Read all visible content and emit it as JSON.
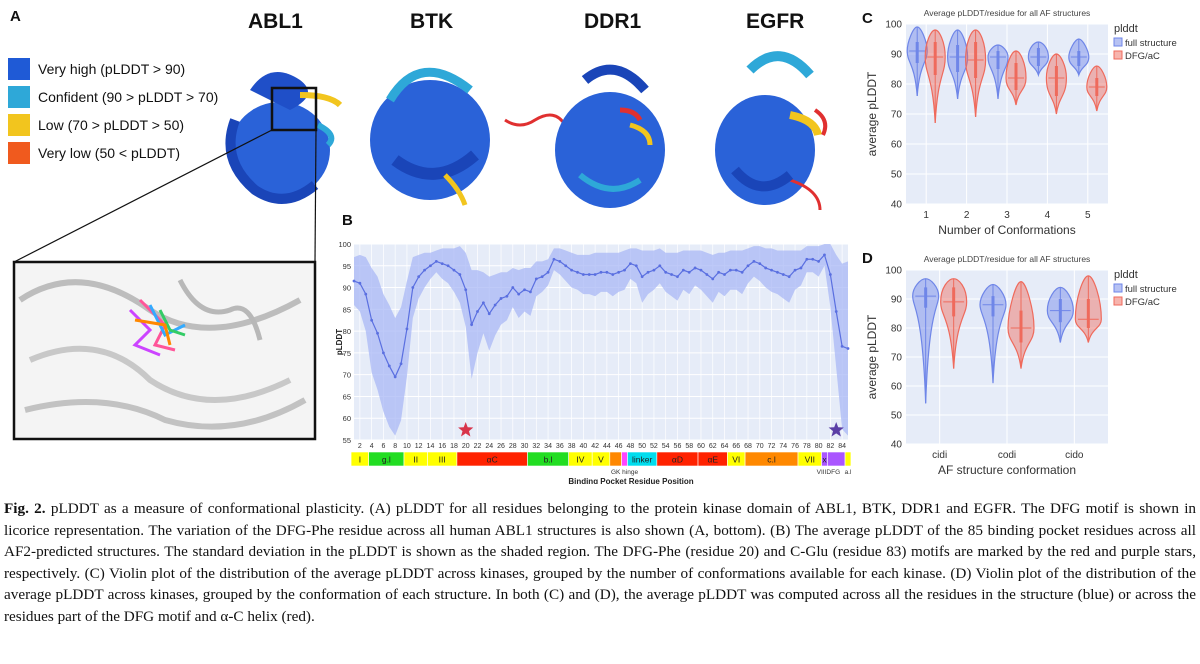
{
  "panels": {
    "a": "A",
    "b": "B",
    "c": "C",
    "d": "D"
  },
  "proteins": [
    "ABL1",
    "BTK",
    "DDR1",
    "EGFR"
  ],
  "legend": [
    {
      "label": "Very high (pLDDT > 90)",
      "color": "#1f5ad6"
    },
    {
      "label": "Confident (90 > pLDDT > 70)",
      "color": "#2ea8d8"
    },
    {
      "label": "Low (70 > pLDDT > 50)",
      "color": "#f2c51e"
    },
    {
      "label": "Very low (50 < pLDDT)",
      "color": "#f05a1e"
    }
  ],
  "caption": {
    "label": "Fig. 2.",
    "text": "pLDDT as a measure of conformational plasticity. (A) pLDDT for all residues belonging to the protein kinase domain of ABL1, BTK, DDR1 and EGFR. The DFG motif is shown in licorice representation. The variation of the DFG-Phe residue across all human ABL1 structures is also shown (A, bottom). (B) The average pLDDT of the 85 binding pocket residues across all AF2-predicted structures. The standard deviation in the pLDDT is shown as the shaded region. The DFG-Phe (residue 20) and C-Glu (residue 83) motifs are marked by the red and purple stars, respectively. (C) Violin plot of the distribution of the average pLDDT across kinases, grouped by the number of conformations available for each kinase. (D) Violin plot of the distribution of the average pLDDT across kinases, grouped by the conformation of each structure. In both (C) and (D), the average pLDDT was computed across all the residues in the structure (blue) or across the residues part of the DFG motif and α-C helix (red)."
  },
  "chart_data": [
    {
      "id": "B",
      "type": "line",
      "title": "",
      "xlabel": "Binding Pocket Residue Position",
      "ylabel": "pLDDT",
      "xlim": [
        1,
        85
      ],
      "ylim": [
        55,
        100
      ],
      "yticks": [
        55,
        60,
        65,
        70,
        75,
        80,
        85,
        90,
        95,
        100
      ],
      "xticks": [
        2,
        4,
        6,
        8,
        10,
        12,
        14,
        16,
        18,
        20,
        22,
        24,
        26,
        28,
        30,
        32,
        34,
        36,
        38,
        40,
        42,
        44,
        46,
        48,
        50,
        52,
        54,
        56,
        58,
        60,
        62,
        64,
        66,
        68,
        70,
        72,
        74,
        76,
        78,
        80,
        82,
        84
      ],
      "x": [
        1,
        2,
        3,
        4,
        5,
        6,
        7,
        8,
        9,
        10,
        11,
        12,
        13,
        14,
        15,
        16,
        17,
        18,
        19,
        20,
        21,
        22,
        23,
        24,
        25,
        26,
        27,
        28,
        29,
        30,
        31,
        32,
        33,
        34,
        35,
        36,
        37,
        38,
        39,
        40,
        41,
        42,
        43,
        44,
        45,
        46,
        47,
        48,
        49,
        50,
        51,
        52,
        53,
        54,
        55,
        56,
        57,
        58,
        59,
        60,
        61,
        62,
        63,
        64,
        65,
        66,
        67,
        68,
        69,
        70,
        71,
        72,
        73,
        74,
        75,
        76,
        77,
        78,
        79,
        80,
        81,
        82,
        83,
        84,
        85
      ],
      "mean": [
        91.5,
        91.0,
        88.5,
        82.5,
        79.5,
        75.0,
        72.0,
        69.5,
        72.5,
        80.5,
        90.0,
        92.5,
        94.0,
        95.0,
        96.0,
        95.5,
        95.0,
        94.0,
        93.0,
        89.5,
        81.5,
        84.5,
        86.5,
        84.0,
        86.0,
        87.5,
        88.0,
        90.0,
        88.5,
        89.5,
        89.0,
        92.0,
        92.5,
        93.5,
        96.5,
        96.0,
        95.0,
        94.0,
        93.5,
        93.0,
        93.0,
        93.0,
        93.5,
        93.5,
        93.0,
        93.5,
        94.0,
        95.5,
        95.0,
        92.5,
        93.5,
        94.0,
        95.0,
        93.5,
        93.0,
        92.5,
        94.0,
        93.5,
        94.5,
        94.0,
        93.0,
        92.0,
        93.5,
        93.0,
        94.0,
        94.0,
        93.5,
        95.0,
        96.0,
        95.5,
        94.5,
        94.0,
        93.5,
        93.0,
        92.5,
        94.0,
        94.5,
        96.5,
        96.5,
        96.0,
        97.5,
        93.0,
        84.5,
        76.5,
        76.0
      ],
      "std": [
        5.5,
        6.5,
        8.5,
        12.0,
        13.0,
        13.5,
        14.0,
        13.5,
        13.0,
        11.0,
        7.0,
        5.0,
        4.0,
        3.0,
        2.5,
        3.5,
        4.0,
        5.0,
        6.5,
        8.5,
        12.5,
        9.5,
        7.0,
        8.5,
        7.0,
        6.0,
        5.5,
        4.5,
        5.5,
        5.0,
        5.5,
        4.0,
        3.5,
        3.0,
        2.5,
        3.0,
        3.5,
        4.0,
        4.0,
        4.5,
        4.5,
        5.0,
        4.5,
        4.5,
        5.0,
        4.5,
        4.5,
        3.5,
        4.0,
        6.0,
        5.0,
        4.5,
        4.0,
        4.5,
        5.0,
        5.5,
        4.5,
        5.0,
        4.0,
        4.5,
        5.0,
        5.5,
        4.5,
        5.0,
        4.5,
        4.5,
        5.0,
        4.0,
        3.5,
        4.0,
        4.5,
        5.0,
        5.0,
        5.5,
        6.0,
        4.5,
        4.0,
        3.0,
        3.0,
        3.5,
        2.5,
        7.5,
        13.0,
        19.0,
        20.0
      ],
      "stars": [
        {
          "x": 20,
          "color": "#d8344a",
          "label": "DFG-Phe"
        },
        {
          "x": 83,
          "color": "#5b3fa6",
          "label": "C-Glu"
        }
      ],
      "regions": [
        {
          "label": "I",
          "start": 1,
          "end": 3,
          "color": "#ffff00"
        },
        {
          "label": "g.l",
          "start": 4,
          "end": 9,
          "color": "#22dd22"
        },
        {
          "label": "II",
          "start": 10,
          "end": 13,
          "color": "#ffff00"
        },
        {
          "label": "III",
          "start": 14,
          "end": 18,
          "color": "#ffff00"
        },
        {
          "label": "αC",
          "start": 19,
          "end": 30,
          "color": "#ff2200"
        },
        {
          "label": "b.l",
          "start": 31,
          "end": 37,
          "color": "#22dd22"
        },
        {
          "label": "IV",
          "start": 38,
          "end": 41,
          "color": "#ffff00"
        },
        {
          "label": "V",
          "start": 42,
          "end": 44,
          "color": "#ffff00"
        },
        {
          "label": "",
          "start": 45,
          "end": 46,
          "color": "#ff8800"
        },
        {
          "label": "",
          "start": 47,
          "end": 47,
          "color": "#ff44ff"
        },
        {
          "label": "linker",
          "start": 48,
          "end": 52,
          "color": "#00ddee"
        },
        {
          "label": "αD",
          "start": 53,
          "end": 59,
          "color": "#ff2200"
        },
        {
          "label": "αE",
          "start": 60,
          "end": 64,
          "color": "#ff2200"
        },
        {
          "label": "VI",
          "start": 65,
          "end": 67,
          "color": "#ffff00"
        },
        {
          "label": "c.l",
          "start": 68,
          "end": 76,
          "color": "#ff8800"
        },
        {
          "label": "VII",
          "start": 77,
          "end": 80,
          "color": "#ffff00"
        },
        {
          "label": "x",
          "start": 81,
          "end": 81,
          "color": "#aa55ff"
        },
        {
          "label": "",
          "start": 82,
          "end": 84,
          "color": "#aa55ff"
        },
        {
          "label": "",
          "start": 85,
          "end": 85,
          "color": "#ffff00"
        }
      ],
      "sublabels": [
        {
          "label": "GK hinge",
          "x": 47
        },
        {
          "label": "VIII",
          "x": 80.5
        },
        {
          "label": "DFG",
          "x": 82.5
        },
        {
          "label": "a.l",
          "x": 85
        }
      ]
    },
    {
      "id": "C",
      "type": "violin",
      "title": "Average pLDDT/residue for all AF structures",
      "xlabel": "Number of Conformations",
      "ylabel": "average pLDDT",
      "categories": [
        "1",
        "2",
        "3",
        "4",
        "5"
      ],
      "ylim": [
        40,
        100
      ],
      "yticks": [
        40,
        50,
        60,
        70,
        80,
        90,
        100
      ],
      "legend_title": "plddt",
      "series": [
        {
          "name": "full structure",
          "color": "#6f86e8",
          "min": [
            76,
            75,
            75,
            83,
            83
          ],
          "q1": [
            87,
            84,
            85,
            86,
            86
          ],
          "median": [
            91,
            89,
            89,
            89,
            89
          ],
          "q3": [
            94,
            93,
            91,
            92,
            91
          ],
          "max": [
            99,
            98,
            93,
            94,
            95
          ]
        },
        {
          "name": "DFG/aC",
          "color": "#ef6a5c",
          "min": [
            67,
            69,
            73,
            70,
            71
          ],
          "q1": [
            83,
            82,
            78,
            76,
            76
          ],
          "median": [
            89,
            88,
            82,
            82,
            79
          ],
          "q3": [
            94,
            94,
            87,
            86,
            82
          ],
          "max": [
            98,
            98,
            91,
            90,
            86
          ]
        }
      ]
    },
    {
      "id": "D",
      "type": "violin",
      "title": "Average pLDDT/residue for all AF structures",
      "xlabel": "AF structure conformation",
      "ylabel": "average pLDDT",
      "categories": [
        "cidi",
        "codi",
        "cido"
      ],
      "ylim": [
        40,
        100
      ],
      "yticks": [
        40,
        50,
        60,
        70,
        80,
        90,
        100
      ],
      "legend_title": "plddt",
      "series": [
        {
          "name": "full structure",
          "color": "#6f86e8",
          "min": [
            54,
            61,
            75
          ],
          "q1": [
            87,
            84,
            82
          ],
          "median": [
            91,
            88,
            86
          ],
          "q3": [
            94,
            91,
            90
          ],
          "max": [
            97,
            95,
            94
          ]
        },
        {
          "name": "DFG/aC",
          "color": "#ef6a5c",
          "min": [
            66,
            66,
            75
          ],
          "q1": [
            84,
            75,
            80
          ],
          "median": [
            89,
            80,
            83
          ],
          "q3": [
            94,
            86,
            90
          ],
          "max": [
            97,
            96,
            98
          ]
        }
      ]
    }
  ]
}
